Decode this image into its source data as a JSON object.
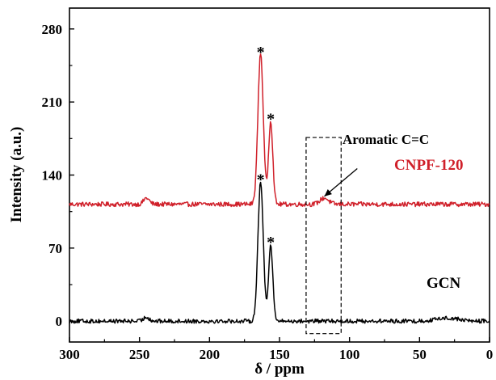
{
  "chart_data": {
    "type": "line",
    "title": "",
    "xlabel": "δ / ppm",
    "ylabel": "Intensity (a.u.)",
    "xlim": [
      300,
      0
    ],
    "ylim": [
      -20,
      300
    ],
    "x_reversed": true,
    "xticks": [
      300,
      250,
      200,
      150,
      100,
      50,
      0
    ],
    "yticks": [
      0,
      70,
      140,
      210,
      280
    ],
    "grid": false,
    "series": [
      {
        "name": "CNPF-120",
        "color": "#d0202a",
        "baseline": 112,
        "noise": 2.2,
        "peaks": [
          {
            "x": 163.5,
            "height": 145,
            "width": 1.9
          },
          {
            "x": 156.3,
            "height": 80,
            "width": 1.5
          },
          {
            "x": 118,
            "height": 6,
            "width": 3
          },
          {
            "x": 245,
            "height": 6,
            "width": 2
          }
        ]
      },
      {
        "name": "GCN",
        "color": "#000000",
        "baseline": 0,
        "noise": 2.0,
        "peaks": [
          {
            "x": 163.5,
            "height": 133,
            "width": 1.9
          },
          {
            "x": 156.3,
            "height": 73,
            "width": 1.5
          },
          {
            "x": 245,
            "height": 4,
            "width": 2
          },
          {
            "x": 30,
            "height": 3,
            "width": 8
          }
        ]
      }
    ],
    "annotations": {
      "stars": [
        {
          "x": 163.5,
          "y": 262
        },
        {
          "x": 156.3,
          "y": 198
        },
        {
          "x": 163.5,
          "y": 140
        },
        {
          "x": 156.3,
          "y": 80
        }
      ],
      "star_text": "*",
      "box": {
        "x0": 131,
        "x1": 106,
        "y0": -12,
        "y1": 176
      },
      "aromatic_label": "Aromatic C=C",
      "arrow_from": {
        "x": 106,
        "y": 140
      },
      "arrow_to": {
        "x": 118,
        "y": 118
      }
    }
  }
}
